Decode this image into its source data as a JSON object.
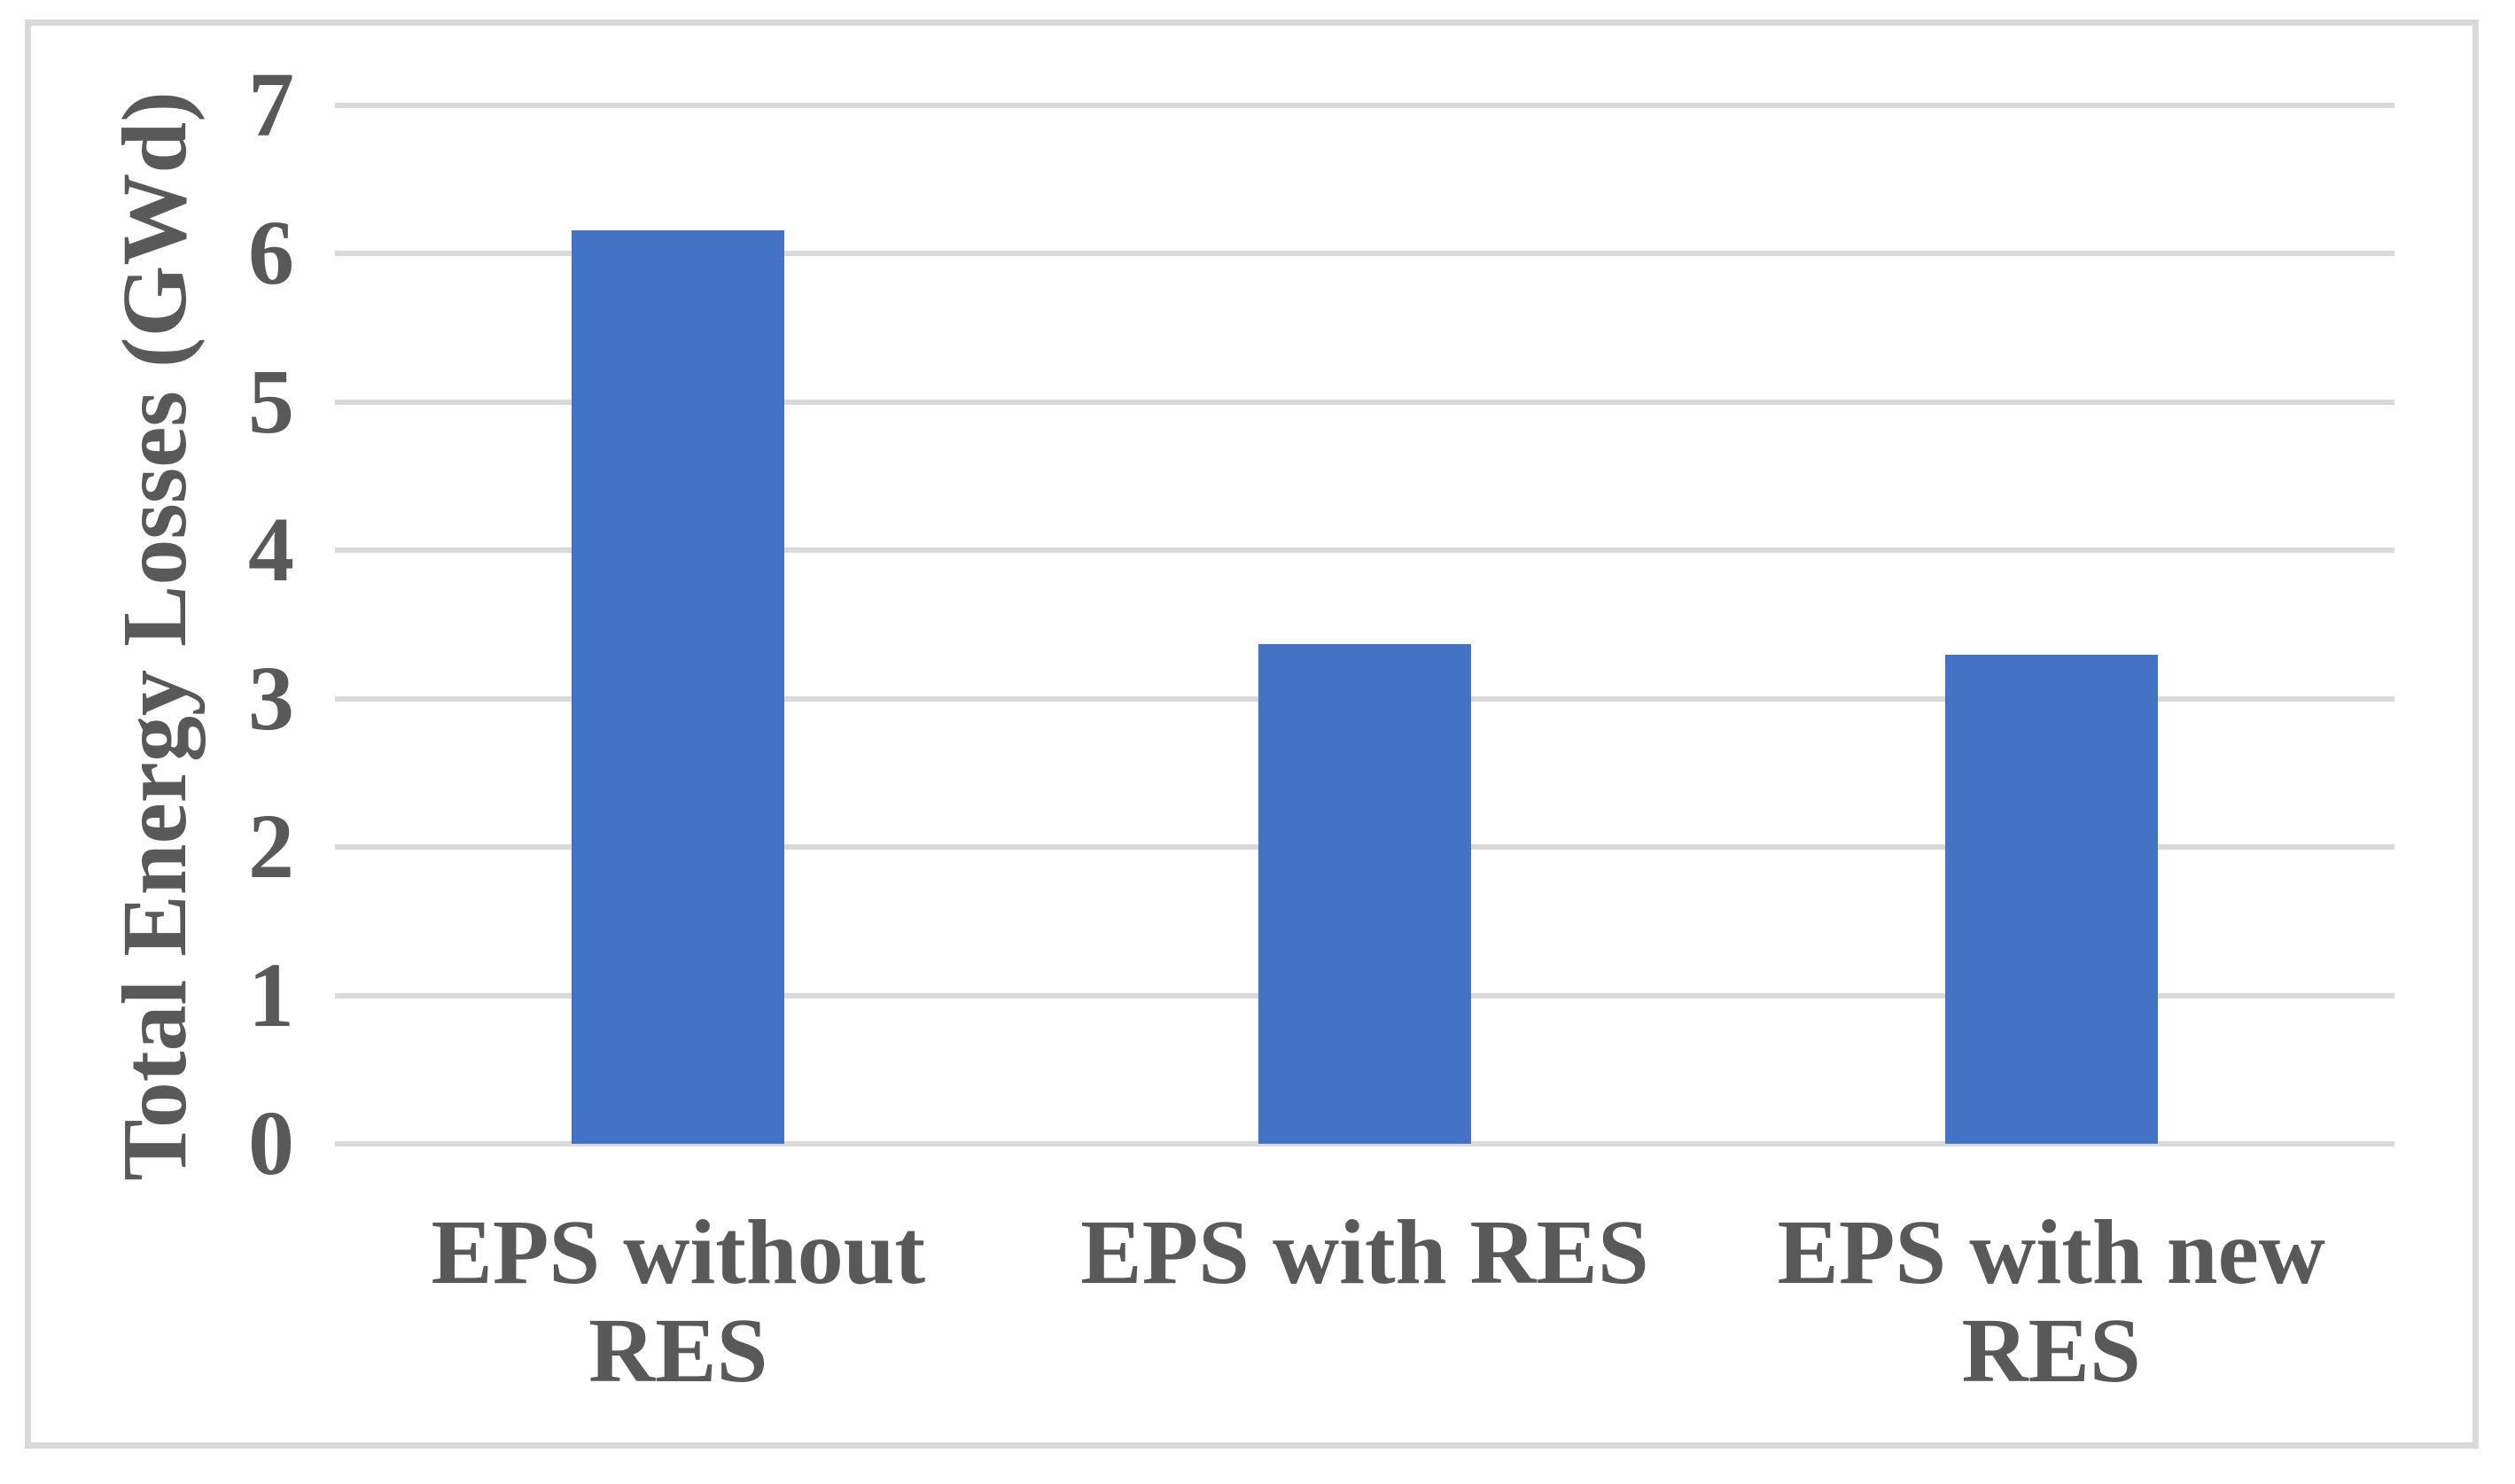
{
  "page": {
    "background_color": "#FFFFFF",
    "frame_border_color": "#D9D9D9",
    "gridline_color": "#D9D9D9",
    "text_color": "#595959"
  },
  "axes": {
    "y_title": "Total Energy Losses (GWd)",
    "y_tick_labels": {
      "t7": "7",
      "t6": "6",
      "t5": "5",
      "t4": "4",
      "t3": "3",
      "t2": "2",
      "t1": "1",
      "t0": "0"
    },
    "x_labels": {
      "c0": "EPS without RES",
      "c1": "EPS with RES",
      "c2": "EPS with new\nRES"
    }
  },
  "chart_data": {
    "type": "bar",
    "title": "",
    "categories": [
      "EPS without RES",
      "EPS with RES",
      "EPS with new RES"
    ],
    "values": [
      6.16,
      3.37,
      3.3
    ],
    "xlabel": "",
    "ylabel": "Total Energy Losses (GWd)",
    "ylim": [
      0,
      7
    ],
    "yticks": [
      0,
      1,
      2,
      3,
      4,
      5,
      6,
      7
    ],
    "grid": "horizontal",
    "legend_position": "none",
    "bar_color": "#4472C4",
    "series": [
      {
        "name": "Total Energy Losses (GWd)",
        "values": [
          6.16,
          3.37,
          3.3
        ]
      }
    ]
  }
}
